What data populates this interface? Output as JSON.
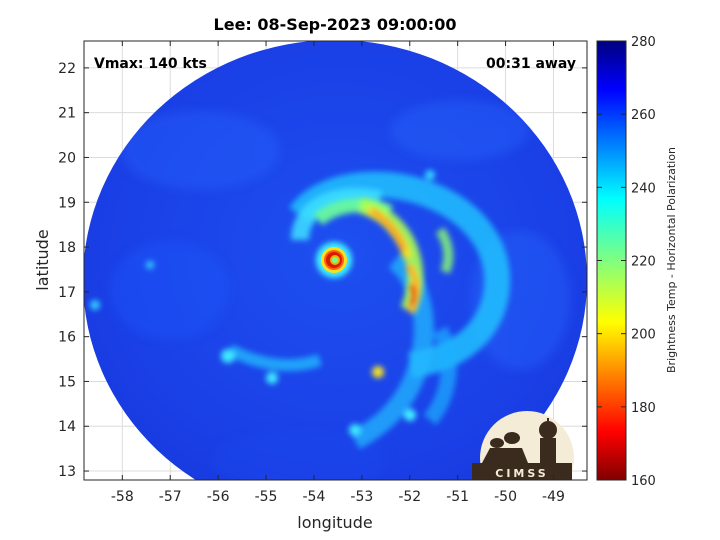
{
  "figure": {
    "title": "Lee: 08-Sep-2023 09:00:00",
    "vmax_label": "Vmax: 140 kts",
    "time_offset_label": "00:31 away",
    "xlabel": "longitude",
    "ylabel": "latitude",
    "x_ticks": [
      "-58",
      "-57",
      "-56",
      "-55",
      "-54",
      "-53",
      "-52",
      "-51",
      "-50",
      "-49"
    ],
    "y_ticks": [
      "22",
      "21",
      "20",
      "19",
      "18",
      "17",
      "16",
      "15",
      "14",
      "13"
    ],
    "colorbar": {
      "label": "Brightness Temp - Horizontal Polarization",
      "ticks": [
        "280",
        "260",
        "240",
        "220",
        "200",
        "180",
        "160"
      ],
      "range": [
        160,
        280
      ],
      "colormap": "jet"
    },
    "logo": {
      "text": "CIMSS"
    },
    "colors": {
      "background": "#1f3fe0",
      "eye": "#e08a00",
      "eyewall": "#d81a00",
      "cloud_band": "#f0d020"
    }
  },
  "chart_data": {
    "type": "heatmap",
    "title": "Lee: 08-Sep-2023 09:00:00",
    "xlabel": "longitude",
    "ylabel": "latitude",
    "xlim": [
      -58.8,
      -48.3
    ],
    "ylim": [
      12.8,
      22.6
    ],
    "clim": [
      160,
      280
    ],
    "storm_center": {
      "lon": -53.6,
      "lat": 17.8
    },
    "annotations": [
      "Vmax: 140 kts",
      "00:31 away"
    ]
  }
}
